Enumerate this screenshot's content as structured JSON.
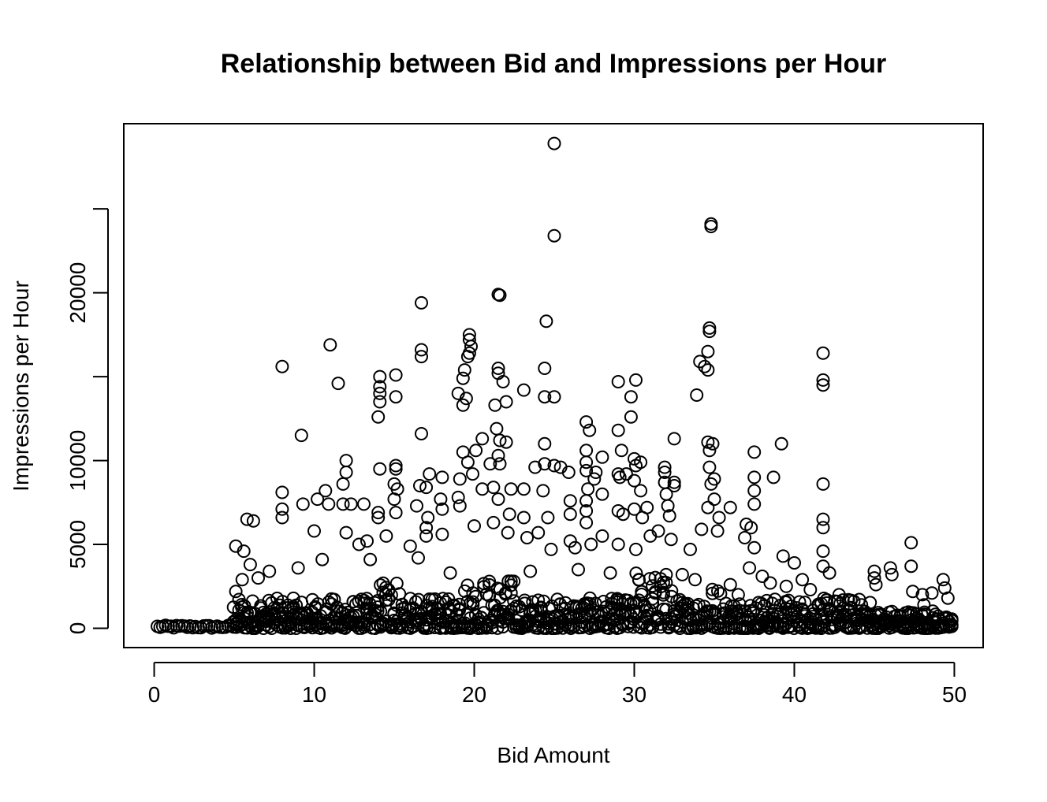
{
  "chart_data": {
    "type": "scatter",
    "title": "Relationship between Bid and Impressions per Hour",
    "xlabel": "Bid Amount",
    "ylabel": "Impressions per Hour",
    "xlim": [
      -1.9,
      51.8
    ],
    "ylim": [
      -1150,
      30080
    ],
    "x_ticks": [
      0,
      10,
      20,
      30,
      40,
      50
    ],
    "y_ticks": [
      0,
      5000,
      10000,
      15000,
      20000,
      25000
    ],
    "y_tick_labels": [
      "0",
      "5000",
      "10000",
      "",
      "20000",
      ""
    ],
    "grid": false,
    "legend": "none",
    "marker": "open-circle",
    "color": "#000000",
    "points": [
      [
        25.0,
        28900
      ],
      [
        25.0,
        23400
      ],
      [
        34.8,
        24100
      ],
      [
        34.8,
        23950
      ],
      [
        16.7,
        19400
      ],
      [
        21.5,
        19900
      ],
      [
        21.6,
        19850
      ],
      [
        24.5,
        18300
      ],
      [
        19.7,
        17500
      ],
      [
        19.7,
        17200
      ],
      [
        19.8,
        16800
      ],
      [
        19.7,
        16400
      ],
      [
        19.6,
        16200
      ],
      [
        34.7,
        17900
      ],
      [
        34.7,
        17700
      ],
      [
        34.6,
        16500
      ],
      [
        34.1,
        15900
      ],
      [
        34.4,
        15600
      ],
      [
        34.6,
        15400
      ],
      [
        41.8,
        16400
      ],
      [
        41.8,
        14800
      ],
      [
        41.8,
        14500
      ],
      [
        11.0,
        16900
      ],
      [
        16.7,
        16600
      ],
      [
        16.7,
        16200
      ],
      [
        8.0,
        15600
      ],
      [
        14.1,
        15000
      ],
      [
        14.1,
        14400
      ],
      [
        14.1,
        14000
      ],
      [
        15.1,
        15100
      ],
      [
        15.1,
        13800
      ],
      [
        11.5,
        14600
      ],
      [
        14.1,
        13500
      ],
      [
        14.0,
        12600
      ],
      [
        21.5,
        15500
      ],
      [
        21.5,
        15200
      ],
      [
        21.8,
        14700
      ],
      [
        23.1,
        14200
      ],
      [
        24.4,
        15500
      ],
      [
        24.4,
        13800
      ],
      [
        25.0,
        13800
      ],
      [
        19.0,
        14000
      ],
      [
        19.4,
        15400
      ],
      [
        19.3,
        14900
      ],
      [
        19.5,
        13700
      ],
      [
        19.3,
        13300
      ],
      [
        21.3,
        13300
      ],
      [
        22.0,
        13500
      ],
      [
        29.0,
        14700
      ],
      [
        30.1,
        14800
      ],
      [
        29.8,
        13800
      ],
      [
        29.8,
        12600
      ],
      [
        27.0,
        12300
      ],
      [
        27.2,
        11800
      ],
      [
        29.0,
        11800
      ],
      [
        32.5,
        11300
      ],
      [
        33.9,
        13900
      ],
      [
        34.6,
        11100
      ],
      [
        34.9,
        11000
      ],
      [
        34.7,
        10600
      ],
      [
        39.2,
        11000
      ],
      [
        37.5,
        10500
      ],
      [
        37.5,
        9000
      ],
      [
        38.7,
        9000
      ],
      [
        41.8,
        8600
      ],
      [
        41.8,
        6500
      ],
      [
        41.8,
        6000
      ],
      [
        9.2,
        11500
      ],
      [
        16.7,
        11600
      ],
      [
        12.0,
        10000
      ],
      [
        12.0,
        9300
      ],
      [
        11.8,
        8600
      ],
      [
        10.7,
        8200
      ],
      [
        8.0,
        8100
      ],
      [
        8.0,
        7100
      ],
      [
        8.0,
        6600
      ],
      [
        9.3,
        7400
      ],
      [
        10.2,
        7700
      ],
      [
        10.9,
        7400
      ],
      [
        11.8,
        7400
      ],
      [
        12.3,
        7400
      ],
      [
        13.1,
        7400
      ],
      [
        14.1,
        9500
      ],
      [
        14.0,
        6900
      ],
      [
        14.0,
        6600
      ],
      [
        15.1,
        9700
      ],
      [
        15.1,
        9500
      ],
      [
        15.0,
        8600
      ],
      [
        15.2,
        8300
      ],
      [
        15.0,
        7700
      ],
      [
        15.1,
        6900
      ],
      [
        16.6,
        8500
      ],
      [
        17.2,
        9200
      ],
      [
        17.0,
        8400
      ],
      [
        18.0,
        9000
      ],
      [
        17.9,
        7700
      ],
      [
        16.4,
        7300
      ],
      [
        17.1,
        6600
      ],
      [
        18.0,
        7100
      ],
      [
        19.1,
        8900
      ],
      [
        19.3,
        10500
      ],
      [
        19.6,
        9900
      ],
      [
        19.9,
        9200
      ],
      [
        19.0,
        7800
      ],
      [
        19.1,
        7300
      ],
      [
        20.1,
        10600
      ],
      [
        20.5,
        11300
      ],
      [
        20.5,
        8300
      ],
      [
        21.0,
        9800
      ],
      [
        21.4,
        11900
      ],
      [
        21.6,
        11200
      ],
      [
        21.5,
        10300
      ],
      [
        21.6,
        9800
      ],
      [
        21.2,
        8400
      ],
      [
        21.5,
        7700
      ],
      [
        22.0,
        11100
      ],
      [
        22.3,
        8300
      ],
      [
        22.2,
        6800
      ],
      [
        23.1,
        8300
      ],
      [
        23.1,
        6600
      ],
      [
        23.8,
        9600
      ],
      [
        24.4,
        11000
      ],
      [
        24.3,
        8200
      ],
      [
        24.4,
        9800
      ],
      [
        24.6,
        6600
      ],
      [
        25.0,
        9700
      ],
      [
        25.4,
        9600
      ],
      [
        25.9,
        9300
      ],
      [
        26.0,
        7600
      ],
      [
        26.0,
        6800
      ],
      [
        27.0,
        10600
      ],
      [
        27.0,
        9900
      ],
      [
        27.0,
        9400
      ],
      [
        27.1,
        8300
      ],
      [
        27.0,
        7600
      ],
      [
        27.0,
        7000
      ],
      [
        27.0,
        6300
      ],
      [
        27.5,
        8900
      ],
      [
        27.6,
        9300
      ],
      [
        28.0,
        10200
      ],
      [
        28.0,
        8000
      ],
      [
        29.0,
        9200
      ],
      [
        29.1,
        9000
      ],
      [
        29.2,
        10600
      ],
      [
        29.5,
        9200
      ],
      [
        29.0,
        7000
      ],
      [
        29.3,
        6800
      ],
      [
        30.0,
        10100
      ],
      [
        30.1,
        9700
      ],
      [
        30.0,
        8800
      ],
      [
        30.4,
        9900
      ],
      [
        30.4,
        8200
      ],
      [
        30.0,
        7100
      ],
      [
        30.5,
        6600
      ],
      [
        30.8,
        7200
      ],
      [
        31.9,
        9600
      ],
      [
        31.9,
        9300
      ],
      [
        31.9,
        8700
      ],
      [
        32.0,
        8000
      ],
      [
        32.5,
        8700
      ],
      [
        32.5,
        8500
      ],
      [
        32.1,
        7300
      ],
      [
        32.2,
        6700
      ],
      [
        34.7,
        9600
      ],
      [
        34.8,
        8600
      ],
      [
        35.0,
        8900
      ],
      [
        35.0,
        7700
      ],
      [
        34.6,
        7200
      ],
      [
        35.3,
        6600
      ],
      [
        36.0,
        7200
      ],
      [
        37.0,
        6200
      ],
      [
        37.3,
        6000
      ],
      [
        37.5,
        8200
      ],
      [
        37.5,
        7400
      ],
      [
        10.0,
        5800
      ],
      [
        6.2,
        6400
      ],
      [
        5.8,
        6500
      ],
      [
        5.6,
        4600
      ],
      [
        5.1,
        4900
      ],
      [
        6.0,
        3800
      ],
      [
        12.0,
        5700
      ],
      [
        13.3,
        5200
      ],
      [
        12.8,
        5000
      ],
      [
        14.5,
        5500
      ],
      [
        16.0,
        4900
      ],
      [
        17.0,
        5500
      ],
      [
        17.0,
        6000
      ],
      [
        18.0,
        5600
      ],
      [
        20.0,
        6100
      ],
      [
        21.2,
        6300
      ],
      [
        22.1,
        5700
      ],
      [
        23.3,
        5400
      ],
      [
        24.0,
        5700
      ],
      [
        24.8,
        4700
      ],
      [
        26.0,
        5200
      ],
      [
        26.3,
        4800
      ],
      [
        27.3,
        5000
      ],
      [
        28.0,
        5500
      ],
      [
        29.0,
        5000
      ],
      [
        30.1,
        4700
      ],
      [
        31.0,
        5500
      ],
      [
        31.5,
        5800
      ],
      [
        32.3,
        5300
      ],
      [
        33.5,
        4700
      ],
      [
        34.2,
        5900
      ],
      [
        35.2,
        5800
      ],
      [
        36.9,
        5400
      ],
      [
        37.5,
        4800
      ],
      [
        39.3,
        4300
      ],
      [
        40.0,
        3900
      ],
      [
        41.8,
        4600
      ],
      [
        41.8,
        3700
      ],
      [
        42.2,
        3300
      ],
      [
        45.0,
        3400
      ],
      [
        45.0,
        3000
      ],
      [
        45.1,
        2600
      ],
      [
        46.0,
        3600
      ],
      [
        46.1,
        3200
      ],
      [
        47.3,
        5100
      ],
      [
        47.3,
        3700
      ],
      [
        47.4,
        2200
      ],
      [
        48.0,
        2000
      ],
      [
        48.1,
        1400
      ],
      [
        48.6,
        2100
      ],
      [
        49.3,
        2900
      ],
      [
        49.4,
        2400
      ],
      [
        49.6,
        1800
      ],
      [
        44.2,
        1400
      ],
      [
        43.5,
        1200
      ],
      [
        37.2,
        3600
      ],
      [
        38.0,
        3100
      ],
      [
        38.5,
        2700
      ],
      [
        39.5,
        2500
      ],
      [
        40.5,
        2900
      ],
      [
        41.0,
        2300
      ],
      [
        42.8,
        2000
      ],
      [
        36.5,
        2000
      ],
      [
        36.0,
        2600
      ],
      [
        33.8,
        2900
      ],
      [
        33.0,
        3200
      ],
      [
        28.5,
        3300
      ],
      [
        26.5,
        3500
      ],
      [
        23.5,
        3400
      ],
      [
        18.5,
        3300
      ],
      [
        16.5,
        4200
      ],
      [
        13.5,
        4100
      ],
      [
        10.5,
        4100
      ],
      [
        9.0,
        3600
      ],
      [
        7.2,
        3400
      ],
      [
        6.5,
        3000
      ],
      [
        5.5,
        2900
      ],
      [
        5.1,
        2200
      ]
    ]
  }
}
